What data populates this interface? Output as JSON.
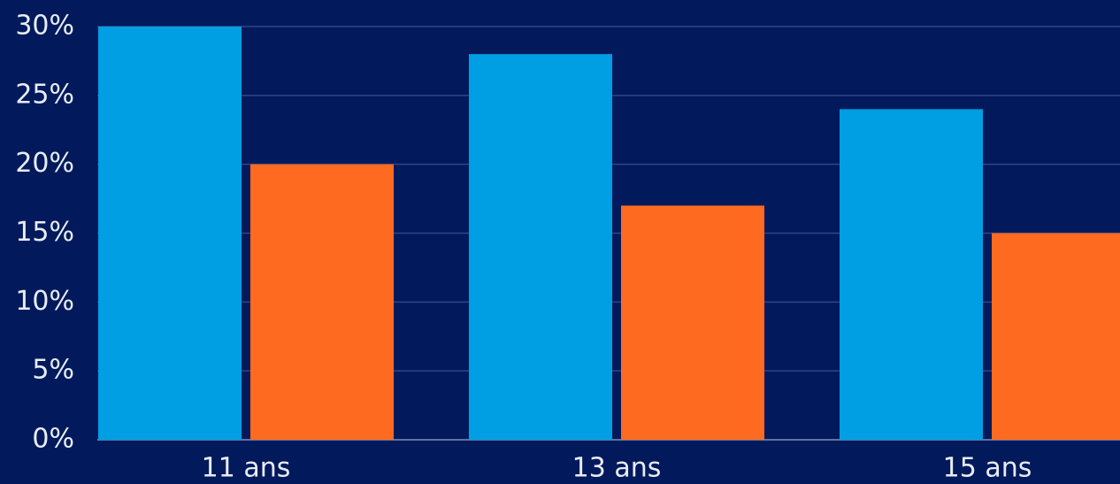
{
  "chart_data": {
    "type": "bar",
    "categories": [
      "11 ans",
      "13 ans",
      "15 ans"
    ],
    "series": [
      {
        "color": "#009fe3",
        "values": [
          30,
          28,
          24
        ]
      },
      {
        "color": "#ff6a21",
        "values": [
          20,
          17,
          15
        ]
      }
    ],
    "ylim": [
      0,
      30
    ],
    "yticks": [
      {
        "value": 0,
        "label": "0%"
      },
      {
        "value": 5,
        "label": "5%"
      },
      {
        "value": 10,
        "label": "10%"
      },
      {
        "value": 15,
        "label": "15%"
      },
      {
        "value": 20,
        "label": "20%"
      },
      {
        "value": 25,
        "label": "25%"
      },
      {
        "value": 30,
        "label": "30%"
      }
    ],
    "grid": true
  }
}
